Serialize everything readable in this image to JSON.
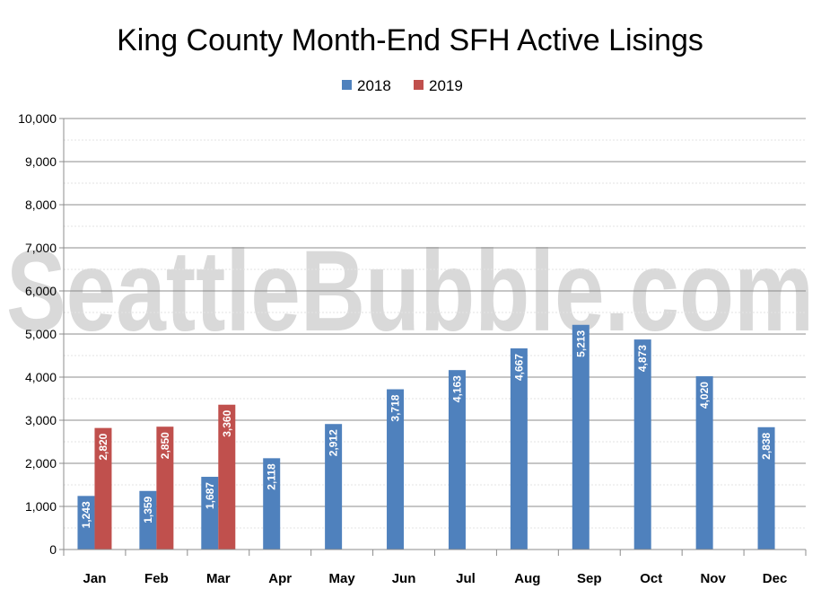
{
  "watermark": "SeattleBubble.com",
  "chart_data": {
    "type": "bar",
    "title": "King County Month-End SFH Active Lisings",
    "xlabel": "",
    "ylabel": "",
    "categories": [
      "Jan",
      "Feb",
      "Mar",
      "Apr",
      "May",
      "Jun",
      "Jul",
      "Aug",
      "Sep",
      "Oct",
      "Nov",
      "Dec"
    ],
    "series": [
      {
        "name": "2018",
        "color": "#4f81bd",
        "values": [
          1243,
          1359,
          1687,
          2118,
          2912,
          3718,
          4163,
          4667,
          5213,
          4873,
          4020,
          2838
        ],
        "labels": [
          "1,243",
          "1,359",
          "1,687",
          "2,118",
          "2,912",
          "3,718",
          "4,163",
          "4,667",
          "5,213",
          "4,873",
          "4,020",
          "2,838"
        ]
      },
      {
        "name": "2019",
        "color": "#c0504d",
        "values": [
          2820,
          2850,
          3360,
          null,
          null,
          null,
          null,
          null,
          null,
          null,
          null,
          null
        ],
        "labels": [
          "2,820",
          "2,850",
          "3,360",
          null,
          null,
          null,
          null,
          null,
          null,
          null,
          null,
          null
        ]
      }
    ],
    "ylim": [
      0,
      10000
    ],
    "yticks": [
      0,
      1000,
      2000,
      3000,
      4000,
      5000,
      6000,
      7000,
      8000,
      9000,
      10000
    ],
    "ytick_labels": [
      "0",
      "1,000",
      "2,000",
      "3,000",
      "4,000",
      "5,000",
      "6,000",
      "7,000",
      "8,000",
      "9,000",
      "10,000"
    ],
    "grid": true,
    "legend_position": "top-center"
  }
}
